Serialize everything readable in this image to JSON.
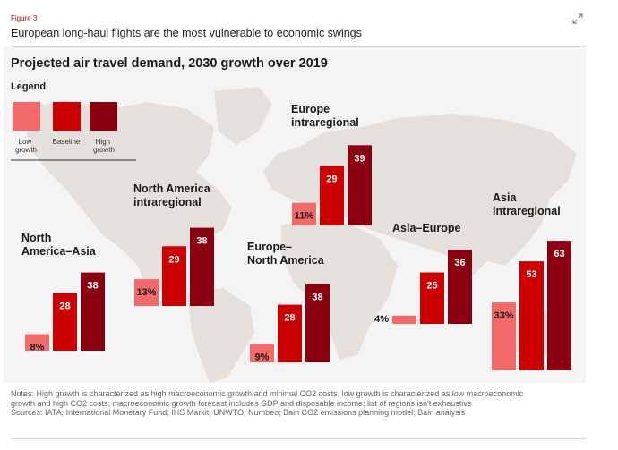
{
  "header": {
    "figure_label": "Figure 3",
    "title": "European long-haul flights are the most vulnerable to economic swings"
  },
  "colors": {
    "low": "#f26a6a",
    "baseline": "#cc0000",
    "high": "#8b0010",
    "map": "#e6e0dc",
    "panel": "#f4f4f4"
  },
  "chart_data": {
    "type": "bar",
    "title": "Projected air travel demand, 2030 growth over 2019",
    "unit": "%",
    "legend": {
      "title": "Legend",
      "entries": [
        "Low\ngrowth",
        "Baseline",
        "High\ngrowth"
      ]
    },
    "series": [
      {
        "name": "Low growth",
        "values": [
          8,
          13,
          9,
          11,
          4,
          33
        ]
      },
      {
        "name": "Baseline",
        "values": [
          28,
          29,
          28,
          29,
          25,
          53
        ]
      },
      {
        "name": "High growth",
        "values": [
          38,
          38,
          38,
          39,
          36,
          63
        ]
      }
    ],
    "labels": [
      [
        "8%",
        "28",
        "38"
      ],
      [
        "13%",
        "29",
        "38"
      ],
      [
        "9%",
        "28",
        "38"
      ],
      [
        "11%",
        "29",
        "39"
      ],
      [
        "4%",
        "25",
        "36"
      ],
      [
        "33%",
        "53",
        "63"
      ]
    ],
    "categories": [
      "North\nAmerica–Asia",
      "North America\nintraregional",
      "Europe–\nNorth America",
      "Europe\nintraregional",
      "Asia–Europe",
      "Asia\nintraregional"
    ]
  },
  "notes": {
    "line1": "Notes: High growth is characterized as high macroeconomic growth and minimal CO2 costs; low growth is characterized as low macroeconomic",
    "line2": "growth and high CO2 costs; macroeconomic growth forecast includes GDP and disposable income; list of regions isn't exhaustive",
    "sources": "Sources: IATA; International Monetary Fund; IHS Markit; UNWTO; Numbeo; Bain CO2 emissions planning model; Bain analysis"
  }
}
